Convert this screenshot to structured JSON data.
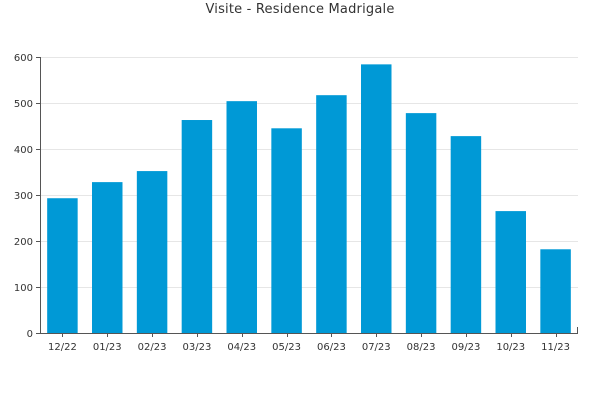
{
  "chart_data": {
    "type": "bar",
    "title": "Visite - Residence Madrigale",
    "xlabel": "",
    "ylabel": "",
    "categories": [
      "12/22",
      "01/23",
      "02/23",
      "03/23",
      "04/23",
      "05/23",
      "06/23",
      "07/23",
      "08/23",
      "09/23",
      "10/23",
      "11/23"
    ],
    "values": [
      293,
      328,
      352,
      463,
      504,
      445,
      517,
      584,
      478,
      428,
      265,
      182
    ],
    "ylim": [
      0,
      600
    ],
    "yticks": [
      0,
      100,
      200,
      300,
      400,
      500,
      600
    ],
    "grid": true,
    "legend": "none",
    "bar_color": "#0099d6",
    "axis_color": "#555555",
    "grid_color": "#e6e6e6"
  }
}
